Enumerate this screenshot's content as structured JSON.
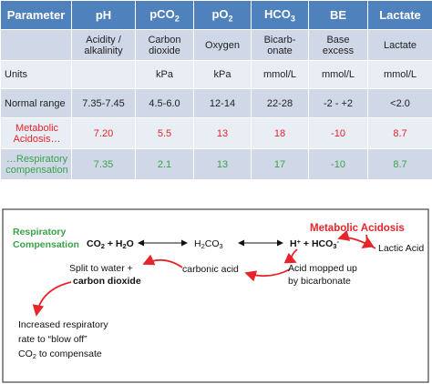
{
  "table": {
    "header": [
      [
        {
          "t": "Parameter"
        }
      ],
      [
        {
          "t": "pH"
        }
      ],
      [
        {
          "t": "pCO"
        },
        {
          "t": "2",
          "pos": "sub"
        }
      ],
      [
        {
          "t": "pO"
        },
        {
          "t": "2",
          "pos": "sub"
        }
      ],
      [
        {
          "t": "HCO"
        },
        {
          "t": "3",
          "pos": "sub"
        }
      ],
      [
        {
          "t": "BE"
        }
      ],
      [
        {
          "t": "Lactate"
        }
      ]
    ],
    "rows": [
      {
        "cells": [
          null,
          "Acidity / alkalinity",
          "Carbon dioxide",
          "Oxygen",
          "Bicarb-onate",
          "Base excess",
          "Lactate"
        ]
      },
      {
        "cells": [
          "Units",
          null,
          "kPa",
          "kPa",
          "mmol/L",
          "mmol/L",
          "mmol/L"
        ]
      },
      {
        "cells": [
          "Normal range",
          "7.35-7.45",
          "4.5-6.0",
          "12-14",
          "22-28",
          "-2 - +2",
          "<2.0"
        ]
      },
      {
        "cells": [
          "Metabolic Acidosis…",
          "7.20",
          "5.5",
          "13",
          "18",
          "-10",
          "8.7"
        ],
        "color": "#e8242b"
      },
      {
        "cells": [
          "…Respiratory compensation",
          "7.35",
          "2.1",
          "13",
          "17",
          "-10",
          "8.7"
        ],
        "color": "#3aa24a"
      }
    ]
  },
  "diagram": {
    "metabolic_acidosis": [
      [
        {
          "t": "Metabolic Acidosis"
        }
      ]
    ],
    "respiratory_compensation": [
      [
        {
          "t": "Respiratory"
        }
      ],
      [
        {
          "t": "Compensation"
        }
      ]
    ],
    "co2_h2o": [
      [
        {
          "t": "CO"
        },
        {
          "t": "2",
          "pos": "sub"
        },
        {
          "t": " + H"
        },
        {
          "t": "2",
          "pos": "sub"
        },
        {
          "t": "O"
        }
      ]
    ],
    "h2co3": [
      [
        {
          "t": "H"
        },
        {
          "t": "2",
          "pos": "sub"
        },
        {
          "t": "CO"
        },
        {
          "t": "3",
          "pos": "sub"
        }
      ]
    ],
    "h_hco3": [
      [
        {
          "t": "H"
        },
        {
          "t": "+",
          "pos": "sup"
        },
        {
          "t": " + HCO"
        },
        {
          "t": "3",
          "pos": "sub"
        },
        {
          "t": "-",
          "pos": "sup"
        }
      ]
    ],
    "lactic_acid": [
      [
        {
          "t": "Lactic Acid"
        }
      ]
    ],
    "split": [
      [
        {
          "t": "Split to water +"
        }
      ]
    ],
    "carbon_dioxide": [
      [
        {
          "t": "carbon dioxide"
        }
      ]
    ],
    "carbonic_acid": [
      [
        {
          "t": "carbonic acid"
        }
      ]
    ],
    "acid_mopped": [
      [
        {
          "t": "Acid mopped up"
        }
      ],
      [
        {
          "t": "by bicarbonate"
        }
      ]
    ],
    "increased_rate": [
      [
        {
          "t": "Increased respiratory"
        }
      ],
      [
        {
          "t": "rate to “blow off”"
        }
      ],
      [
        {
          "t": "CO"
        },
        {
          "t": "2",
          "pos": "sub"
        },
        {
          "t": " to compensate"
        }
      ]
    ]
  }
}
